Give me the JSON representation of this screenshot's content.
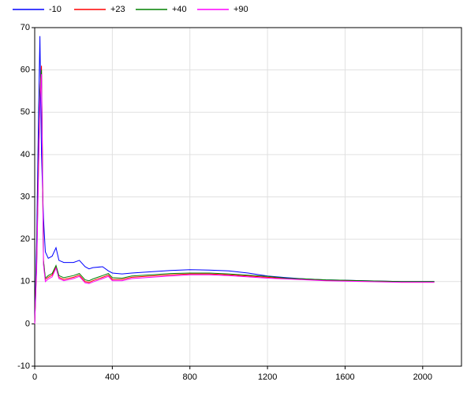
{
  "chart_data": {
    "type": "line",
    "x": [
      0,
      10,
      20,
      27,
      35,
      45,
      55,
      70,
      90,
      110,
      125,
      150,
      200,
      230,
      260,
      280,
      300,
      350,
      380,
      400,
      450,
      500,
      600,
      700,
      800,
      900,
      1000,
      1100,
      1200,
      1300,
      1400,
      1500,
      1600,
      1700,
      1800,
      1900,
      2000,
      2060
    ],
    "series": [
      {
        "name": "-10",
        "color": "#0000ff",
        "values": [
          0,
          20,
          50,
          68,
          40,
          25,
          17,
          15.5,
          16,
          18,
          15,
          14.5,
          14.5,
          15,
          13.5,
          13,
          13.3,
          13.5,
          12.5,
          12,
          11.8,
          12,
          12.3,
          12.6,
          12.8,
          12.7,
          12.5,
          12,
          11.3,
          10.9,
          10.6,
          10.4,
          10.3,
          10.2,
          10.1,
          10,
          10,
          10
        ]
      },
      {
        "name": "+23",
        "color": "#ff0000",
        "values": [
          0,
          15,
          40,
          55,
          61,
          15,
          10.5,
          11,
          11.5,
          13.5,
          11,
          10.5,
          11,
          11.5,
          10,
          9.8,
          10.2,
          11,
          11.5,
          10.5,
          10.5,
          11,
          11.3,
          11.6,
          11.8,
          11.8,
          11.6,
          11.3,
          11,
          10.7,
          10.5,
          10.3,
          10.2,
          10.1,
          10,
          9.9,
          9.9,
          9.9
        ]
      },
      {
        "name": "+40",
        "color": "#008000",
        "values": [
          0,
          14,
          38,
          54,
          60,
          15,
          10.8,
          11.4,
          11.9,
          13.8,
          11.4,
          10.9,
          11.4,
          11.9,
          10.4,
          10.2,
          10.6,
          11.4,
          11.9,
          10.9,
          10.8,
          11.3,
          11.6,
          11.9,
          12,
          12,
          11.8,
          11.5,
          11.2,
          10.8,
          10.6,
          10.4,
          10.3,
          10.2,
          10.1,
          10,
          10,
          10
        ]
      },
      {
        "name": "+90",
        "color": "#ff00ff",
        "values": [
          0,
          13,
          36,
          52,
          59,
          14,
          10,
          10.6,
          11.1,
          13.2,
          10.7,
          10.2,
          10.7,
          11.2,
          9.7,
          9.5,
          9.9,
          10.7,
          11.2,
          10.2,
          10.2,
          10.7,
          11,
          11.3,
          11.6,
          11.6,
          11.4,
          11.1,
          10.8,
          10.6,
          10.4,
          10.2,
          10.1,
          10,
          9.9,
          9.8,
          9.8,
          9.8
        ]
      }
    ],
    "xlim": [
      0,
      2200
    ],
    "xticks": [
      0,
      400,
      800,
      1200,
      1600,
      2000
    ],
    "ylim": [
      -10,
      70
    ],
    "yticks": [
      -10,
      0,
      10,
      20,
      30,
      40,
      50,
      60,
      70
    ],
    "grid": true,
    "legend": "top"
  }
}
